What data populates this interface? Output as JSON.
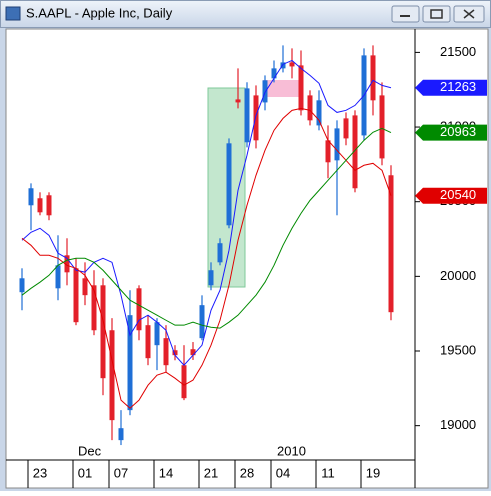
{
  "window": {
    "title": "S.AAPL - Apple Inc, Daily"
  },
  "chart_data": {
    "type": "candlestick",
    "categories": [
      null,
      null,
      "23",
      null,
      null,
      null,
      null,
      "01",
      null,
      null,
      null,
      "07",
      null,
      null,
      null,
      null,
      "14",
      null,
      null,
      null,
      null,
      "21",
      null,
      null,
      null,
      "28",
      null,
      null,
      null,
      "04",
      null,
      null,
      null,
      null,
      "11",
      null,
      null,
      null,
      null,
      "19",
      null,
      null
    ],
    "annotations": [
      "Dec",
      "2010"
    ],
    "open": [
      19894,
      20476,
      20523,
      20543,
      19920,
      20141,
      20054,
      19987,
      19940,
      19940,
      19639,
      18903,
      19104,
      19920,
      19673,
      19539,
      19586,
      19505,
      19405,
      19512,
      19586,
      19940,
      20094,
      20342,
      21185,
      20898,
      21212,
      21165,
      21326,
      21393,
      21433,
      21413,
      21212,
      21011,
      20911,
      20777,
      21058,
      21078,
      20944,
      21480,
      21212,
      20677
    ],
    "high": [
      20054,
      20623,
      20563,
      20563,
      20275,
      20255,
      20121,
      20094,
      20041,
      19987,
      19720,
      19104,
      19907,
      19940,
      19740,
      19720,
      19673,
      19539,
      19539,
      19560,
      19873,
      20094,
      20255,
      20924,
      21393,
      21300,
      21279,
      21346,
      21446,
      21547,
      21527,
      21513,
      21246,
      21246,
      21011,
      21045,
      21098,
      21112,
      21527,
      21547,
      21299,
      20744
    ],
    "low": [
      19773,
      20309,
      20409,
      20376,
      19840,
      19940,
      19673,
      19807,
      19606,
      19204,
      18903,
      18870,
      19070,
      19572,
      19405,
      19372,
      19358,
      19438,
      19171,
      19440,
      19572,
      19907,
      20074,
      20322,
      21125,
      20864,
      20857,
      21112,
      21299,
      21366,
      21326,
      21078,
      21011,
      20978,
      20657,
      20409,
      20878,
      20563,
      20911,
      21078,
      20744,
      19706
    ],
    "close": [
      19987,
      20590,
      20429,
      20409,
      20074,
      20027,
      19693,
      19874,
      19639,
      19318,
      19037,
      18983,
      19740,
      19639,
      19452,
      19693,
      19405,
      19472,
      19184,
      19472,
      19807,
      20041,
      20222,
      20891,
      21165,
      21259,
      20911,
      21313,
      21393,
      21433,
      21406,
      21112,
      21045,
      21179,
      20764,
      20991,
      20924,
      20590,
      21480,
      21179,
      20790,
      19760
    ],
    "up_color": "#1f6fd6",
    "down_color": "#e3202a",
    "series": [
      {
        "color": "#1a1aff",
        "tag_text_color": "#ffffff",
        "values": [
          20242,
          20295,
          20322,
          20275,
          20155,
          20121,
          20041,
          20028,
          20094,
          20121,
          20094,
          19874,
          19606,
          19706,
          19740,
          19693,
          19639,
          19472,
          19405,
          19472,
          19539,
          19773,
          19907,
          20175,
          20576,
          20811,
          21078,
          21232,
          21326,
          21420,
          21446,
          21393,
          21346,
          21293,
          21145,
          21098,
          21112,
          21145,
          21212,
          21313,
          21279,
          21263
        ]
      },
      {
        "color": "#e00000",
        "tag_text_color": "#ffffff",
        "values": [
          20255,
          20208,
          20141,
          20141,
          20121,
          20074,
          20054,
          20007,
          19907,
          19706,
          19439,
          19171,
          19117,
          19171,
          19271,
          19338,
          19358,
          19318,
          19271,
          19305,
          19405,
          19539,
          19706,
          19941,
          20242,
          20476,
          20677,
          20844,
          20978,
          21058,
          21112,
          21125,
          21112,
          21045,
          20911,
          20844,
          20777,
          20710,
          20744,
          20757,
          20710,
          20540
        ]
      },
      {
        "color": "#008a00",
        "tag_text_color": "#ffffff",
        "values": [
          19874,
          19920,
          19961,
          20007,
          20074,
          20108,
          20121,
          20121,
          20094,
          20041,
          19974,
          19907,
          19840,
          19807,
          19773,
          19740,
          19706,
          19673,
          19673,
          19693,
          19673,
          19659,
          19653,
          19693,
          19740,
          19807,
          19874,
          19961,
          20074,
          20208,
          20322,
          20422,
          20509,
          20576,
          20643,
          20710,
          20777,
          20844,
          20911,
          20965,
          20991,
          20963
        ]
      }
    ],
    "ylim": [
      18770,
      21650
    ],
    "yticks": [
      19000,
      19500,
      20000,
      20500,
      21000,
      21500
    ],
    "grid": false
  }
}
